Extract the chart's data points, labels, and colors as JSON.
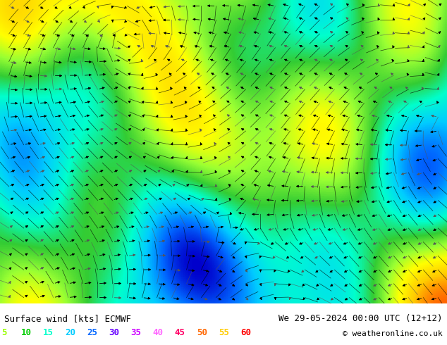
{
  "title_left": "Surface wind [kts] ECMWF",
  "title_right": "We 29-05-2024 00:00 UTC (12+12)",
  "copyright": "© weatheronline.co.uk",
  "legend_values": [
    5,
    10,
    15,
    20,
    25,
    30,
    35,
    40,
    45,
    50,
    55,
    60
  ],
  "legend_colors": [
    "#99ff00",
    "#00cc00",
    "#00ffcc",
    "#00ccff",
    "#0066ff",
    "#6600ff",
    "#cc00ff",
    "#ff66ff",
    "#ff0066",
    "#ff6600",
    "#ffcc00",
    "#ff0000"
  ],
  "bg_color": "#ffffff",
  "map_colors": {
    "green_light": "#99ff33",
    "green_mid": "#33cc33",
    "yellow": "#ffff00",
    "cyan": "#00ffcc",
    "blue_light": "#66ccff",
    "blue_dark": "#0000ff",
    "teal": "#00cccc"
  },
  "text_color_left": "#000000",
  "text_color_right": "#000000",
  "figsize": [
    6.34,
    4.9
  ],
  "dpi": 100,
  "bottom_bar_height": 0.12,
  "font_size_label": 9,
  "font_size_legend": 9
}
